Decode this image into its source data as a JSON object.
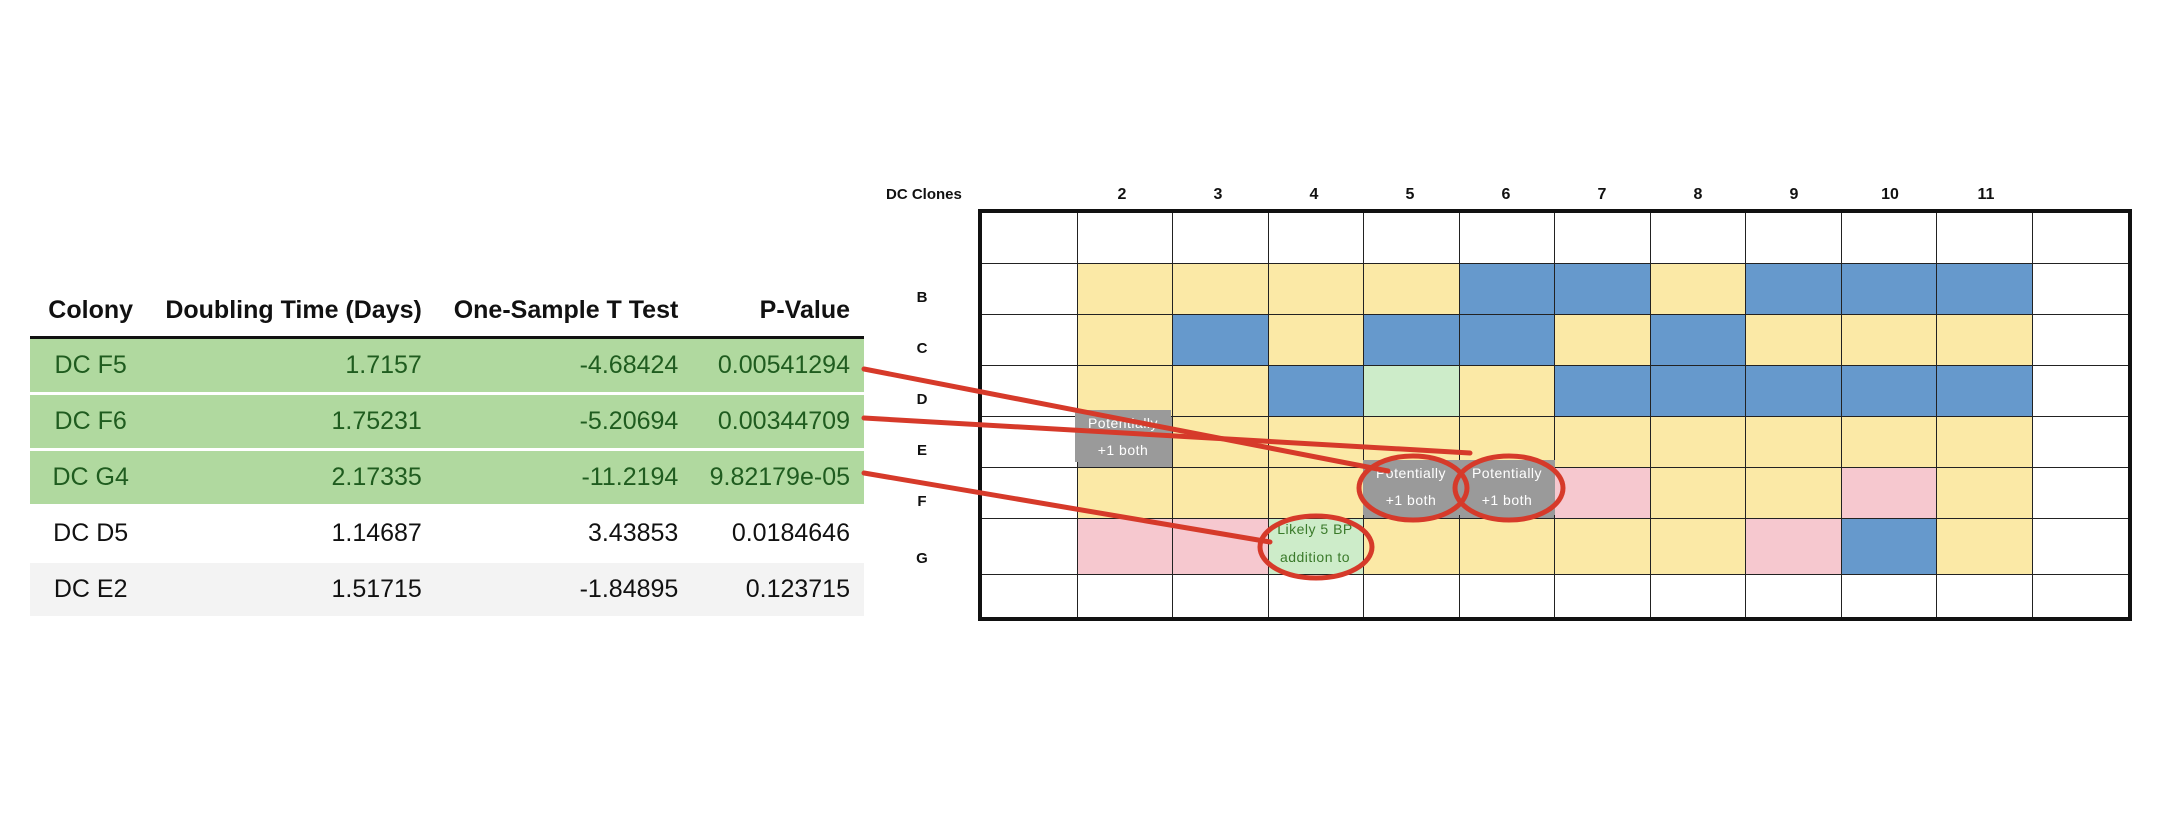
{
  "table": {
    "headers": [
      "Colony",
      "Doubling Time (Days)",
      "One-Sample T Test",
      "P-Value"
    ],
    "rows": [
      {
        "highlight": "green",
        "cells": [
          "DC F5",
          "1.7157",
          "-4.68424",
          "0.00541294"
        ]
      },
      {
        "highlight": "green",
        "cells": [
          "DC F6",
          "1.75231",
          "-5.20694",
          "0.00344709"
        ]
      },
      {
        "highlight": "green",
        "cells": [
          "DC G4",
          "2.17335",
          "-11.2194",
          "9.82179e-05"
        ]
      },
      {
        "highlight": "none",
        "cells": [
          "DC D5",
          "1.14687",
          "3.43853",
          "0.0184646"
        ]
      },
      {
        "highlight": "grey",
        "cells": [
          "DC E2",
          "1.51715",
          "-1.84895",
          "0.123715"
        ]
      }
    ]
  },
  "plate": {
    "title": "DC Clones",
    "column_labels": [
      "2",
      "3",
      "4",
      "5",
      "6",
      "7",
      "8",
      "9",
      "10",
      "11"
    ],
    "row_labels": [
      "B",
      "C",
      "D",
      "E",
      "F",
      "G"
    ],
    "well_colors_legend": {
      "y": "#fbe9a6",
      "b": "#6699cc",
      "p": "#f6c8cf",
      "lg": "#cdecc9",
      "g": "#9a9a9a",
      "w": "#ffffff"
    },
    "rows": [
      [
        "w",
        "w",
        "w",
        "w",
        "w",
        "w",
        "w",
        "w",
        "w",
        "w",
        "w",
        "w"
      ],
      [
        "w",
        "y",
        "y",
        "y",
        "y",
        "b",
        "b",
        "y",
        "b",
        "b",
        "b",
        "w"
      ],
      [
        "w",
        "y",
        "b",
        "y",
        "b",
        "b",
        "y",
        "b",
        "y",
        "y",
        "y",
        "w"
      ],
      [
        "w",
        "y",
        "y",
        "b",
        "lg",
        "y",
        "b",
        "b",
        "b",
        "b",
        "b",
        "w"
      ],
      [
        "w",
        "g",
        "y",
        "y",
        "y",
        "y",
        "y",
        "y",
        "y",
        "y",
        "y",
        "w"
      ],
      [
        "w",
        "y",
        "y",
        "y",
        "g",
        "g",
        "p",
        "y",
        "y",
        "p",
        "y",
        "w"
      ],
      [
        "w",
        "p",
        "p",
        "lg",
        "y",
        "y",
        "y",
        "y",
        "p",
        "b",
        "y",
        "w"
      ],
      [
        "w",
        "w",
        "w",
        "w",
        "w",
        "w",
        "w",
        "w",
        "w",
        "w",
        "w",
        "w"
      ]
    ],
    "annotations": {
      "e2_line1": "Potentially",
      "e2_line2": "+1 both",
      "f5_line1": "Potentially",
      "f5_line2": "+1 both",
      "f6_line1": "Potentially",
      "f6_line2": "+1 both",
      "g4_line1": "Likely 5 BP",
      "g4_line2": "addition to"
    },
    "marker_color": "#d63a2a"
  }
}
